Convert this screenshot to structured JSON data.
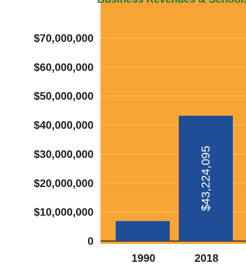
{
  "title": "Business Revenues & Schools",
  "colors": {
    "plot_background": "#f8a536",
    "bar": "#1f4e96",
    "gridline": "#f7c069",
    "axis_text": "#1c1c1c",
    "title": "#1e7a3c",
    "data_label": "#ffffff"
  },
  "chart_data": {
    "type": "bar",
    "title": "Business Revenues & Schools",
    "xlabel": "",
    "ylabel": "",
    "categories": [
      "1990",
      "2018"
    ],
    "values": [
      6900000,
      43224095
    ],
    "data_labels": [
      "",
      "$43,224,095"
    ],
    "ylim": [
      0,
      75000000
    ],
    "yticks": [
      0,
      10000000,
      20000000,
      30000000,
      40000000,
      50000000,
      60000000,
      70000000
    ],
    "ytick_labels": [
      "0",
      "$10,000,000",
      "$20,000,000",
      "$30,000,000",
      "$40,000,000",
      "$50,000,000",
      "$60,000,000",
      "$70,000,000"
    ],
    "grid": true,
    "legend": "none"
  }
}
